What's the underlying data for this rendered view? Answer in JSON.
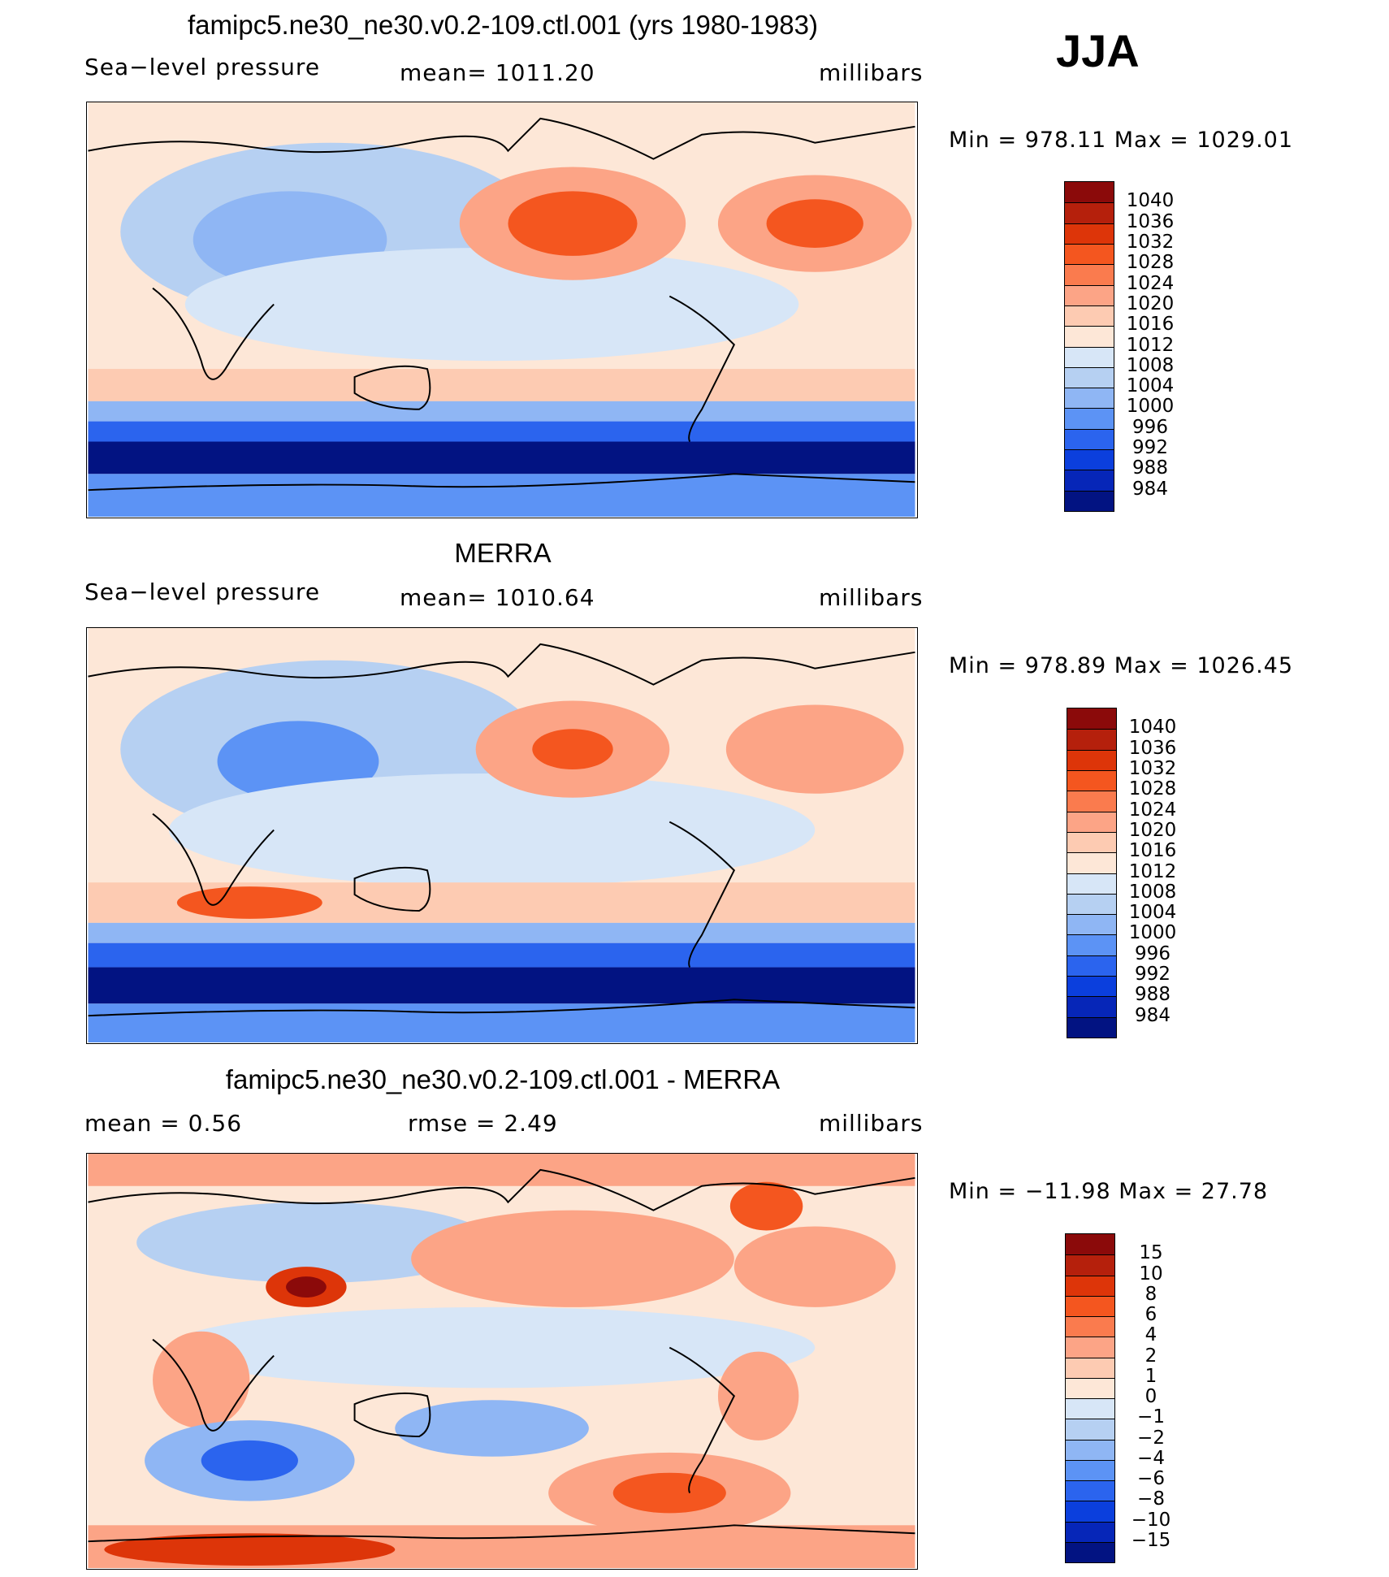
{
  "season": "JJA",
  "palettes": {
    "abs": [
      "#8B0A0A",
      "#B5200C",
      "#DD3509",
      "#F4561F",
      "#FA7B4E",
      "#FCA486",
      "#FDCBB2",
      "#FDE7D7",
      "#D7E6F7",
      "#B6D0F2",
      "#8FB6F4",
      "#5C93F5",
      "#2B64EE",
      "#0B3FDD",
      "#0626B8",
      "#021382"
    ],
    "diff": [
      "#8B0A0A",
      "#B5200C",
      "#DD3509",
      "#F4561F",
      "#FA7B4E",
      "#FCA486",
      "#FDCBB2",
      "#FDE7D7",
      "#D7E6F7",
      "#B6D0F2",
      "#8FB6F4",
      "#5C93F5",
      "#2B64EE",
      "#0B3FDD",
      "#0626B8",
      "#021382"
    ]
  },
  "panels": [
    {
      "title": "famipc5.ne30_ne30.v0.2-109.ctl.001 (yrs 1980-1983)",
      "left_label": "Sea−level pressure",
      "center_label": "mean=  1011.20",
      "right_label": "millibars",
      "minmax": "Min  =  978.11  Max  =  1029.01",
      "levels": [
        "1040",
        "1036",
        "1032",
        "1028",
        "1024",
        "1020",
        "1016",
        "1012",
        "1008",
        "1004",
        "1000",
        "996",
        "992",
        "988",
        "984"
      ],
      "palette": "abs"
    },
    {
      "title": "MERRA",
      "left_label": "Sea−level pressure",
      "center_label": "mean=  1010.64",
      "right_label": "millibars",
      "minmax": "Min  =  978.89  Max  =  1026.45",
      "levels": [
        "1040",
        "1036",
        "1032",
        "1028",
        "1024",
        "1020",
        "1016",
        "1012",
        "1008",
        "1004",
        "1000",
        "996",
        "992",
        "988",
        "984"
      ],
      "palette": "abs"
    },
    {
      "title": "famipc5.ne30_ne30.v0.2-109.ctl.001 - MERRA",
      "left_label": "mean  =     0.56",
      "center_label": "rmse  =     2.49",
      "right_label": "millibars",
      "minmax": "Min  =  −11.98  Max  =    27.78",
      "levels": [
        "15",
        "10",
        "8",
        "6",
        "4",
        "2",
        "1",
        "0",
        "−1",
        "−2",
        "−4",
        "−6",
        "−8",
        "−10",
        "−15"
      ],
      "palette": "diff"
    }
  ],
  "chart_data": [
    {
      "type": "heatmap",
      "title": "famipc5.ne30_ne30.v0.2-109.ctl.001 (yrs 1980-1983)",
      "variable": "Sea-level pressure",
      "units": "millibars",
      "mean": 1011.2,
      "min": 978.11,
      "max": 1029.01,
      "contour_levels": [
        984,
        988,
        992,
        996,
        1000,
        1004,
        1008,
        1012,
        1016,
        1020,
        1024,
        1028,
        1032,
        1036,
        1040
      ]
    },
    {
      "type": "heatmap",
      "title": "MERRA",
      "variable": "Sea-level pressure",
      "units": "millibars",
      "mean": 1010.64,
      "min": 978.89,
      "max": 1026.45,
      "contour_levels": [
        984,
        988,
        992,
        996,
        1000,
        1004,
        1008,
        1012,
        1016,
        1020,
        1024,
        1028,
        1032,
        1036,
        1040
      ]
    },
    {
      "type": "heatmap",
      "title": "famipc5.ne30_ne30.v0.2-109.ctl.001 - MERRA",
      "units": "millibars",
      "mean": 0.56,
      "rmse": 2.49,
      "min": -11.98,
      "max": 27.78,
      "contour_levels": [
        -15,
        -10,
        -8,
        -6,
        -4,
        -2,
        -1,
        0,
        1,
        2,
        4,
        6,
        8,
        10,
        15
      ]
    }
  ]
}
